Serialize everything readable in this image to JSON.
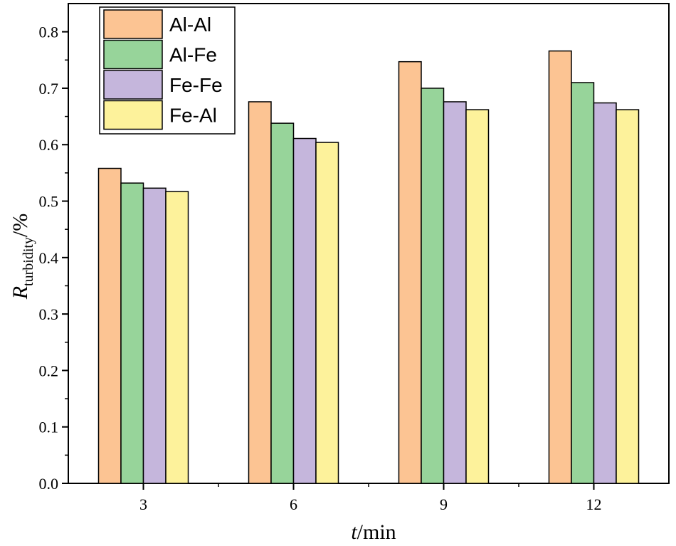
{
  "chart_data": {
    "type": "bar",
    "categories": [
      "3",
      "6",
      "9",
      "12"
    ],
    "series": [
      {
        "name": "Al-Al",
        "color": "#fcc493",
        "values": [
          0.558,
          0.676,
          0.747,
          0.766
        ]
      },
      {
        "name": "Al-Fe",
        "color": "#97d49a",
        "values": [
          0.532,
          0.638,
          0.7,
          0.71
        ]
      },
      {
        "name": "Fe-Fe",
        "color": "#c5b6dc",
        "values": [
          0.523,
          0.611,
          0.676,
          0.674
        ]
      },
      {
        "name": "Fe-Al",
        "color": "#fdf29b",
        "values": [
          0.517,
          0.604,
          0.662,
          0.662
        ]
      }
    ],
    "ylim": [
      0,
      0.85
    ],
    "yticks": [
      "0.0",
      "0.1",
      "0.2",
      "0.3",
      "0.4",
      "0.5",
      "0.6",
      "0.7",
      "0.8"
    ],
    "xlabel": {
      "italic": "t",
      "rest": "/min"
    },
    "ylabel": {
      "italic": "R",
      "subscript": "turbidity",
      "rest": "/%"
    },
    "legend_position": "top-left"
  }
}
